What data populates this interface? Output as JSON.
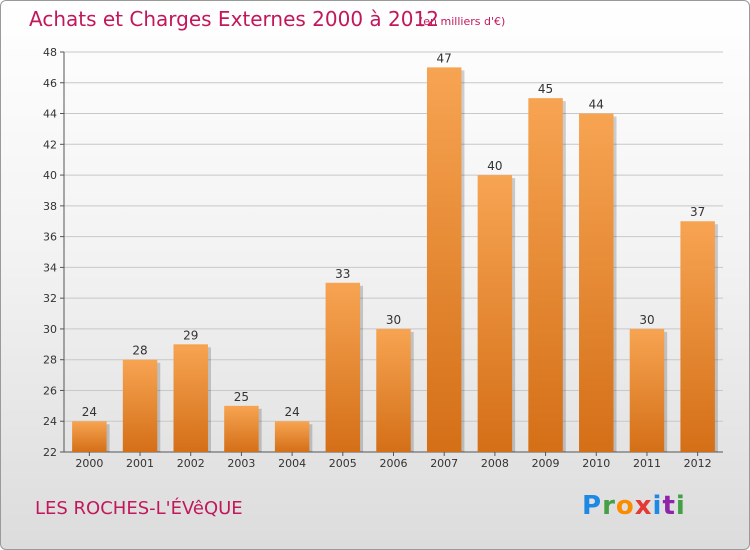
{
  "header": {
    "title": "Achats et Charges Externes 2000 à 2012",
    "subtitle": "(en milliers d'€)"
  },
  "footer": {
    "commune": "LES ROCHES-L'ÉVêQUE",
    "logo_letters": [
      {
        "char": "P",
        "color": "#1e88e5"
      },
      {
        "char": "r",
        "color": "#43a047"
      },
      {
        "char": "o",
        "color": "#fb8c00"
      },
      {
        "char": "x",
        "color": "#e53935"
      },
      {
        "char": "i",
        "color": "#1e88e5"
      },
      {
        "char": "t",
        "color": "#8e24aa"
      },
      {
        "char": "i",
        "color": "#43a047"
      }
    ]
  },
  "colors": {
    "title": "#c2185b",
    "bar_light": "#f7a452",
    "bar_dark": "#d46f17",
    "grid": "#c8c8c8"
  },
  "chart_data": {
    "type": "bar",
    "title": "Achats et Charges Externes 2000 à 2012",
    "subtitle": "(en milliers d'€)",
    "xlabel": "",
    "ylabel": "",
    "categories": [
      "2000",
      "2001",
      "2002",
      "2003",
      "2004",
      "2005",
      "2006",
      "2007",
      "2008",
      "2009",
      "2010",
      "2011",
      "2012"
    ],
    "values": [
      24,
      28,
      29,
      25,
      24,
      33,
      30,
      47,
      40,
      45,
      44,
      30,
      37
    ],
    "ylim": [
      22,
      48
    ],
    "yticks": [
      22,
      24,
      26,
      28,
      30,
      32,
      34,
      36,
      38,
      40,
      42,
      44,
      46,
      48
    ],
    "grid": true,
    "data_labels": true
  }
}
